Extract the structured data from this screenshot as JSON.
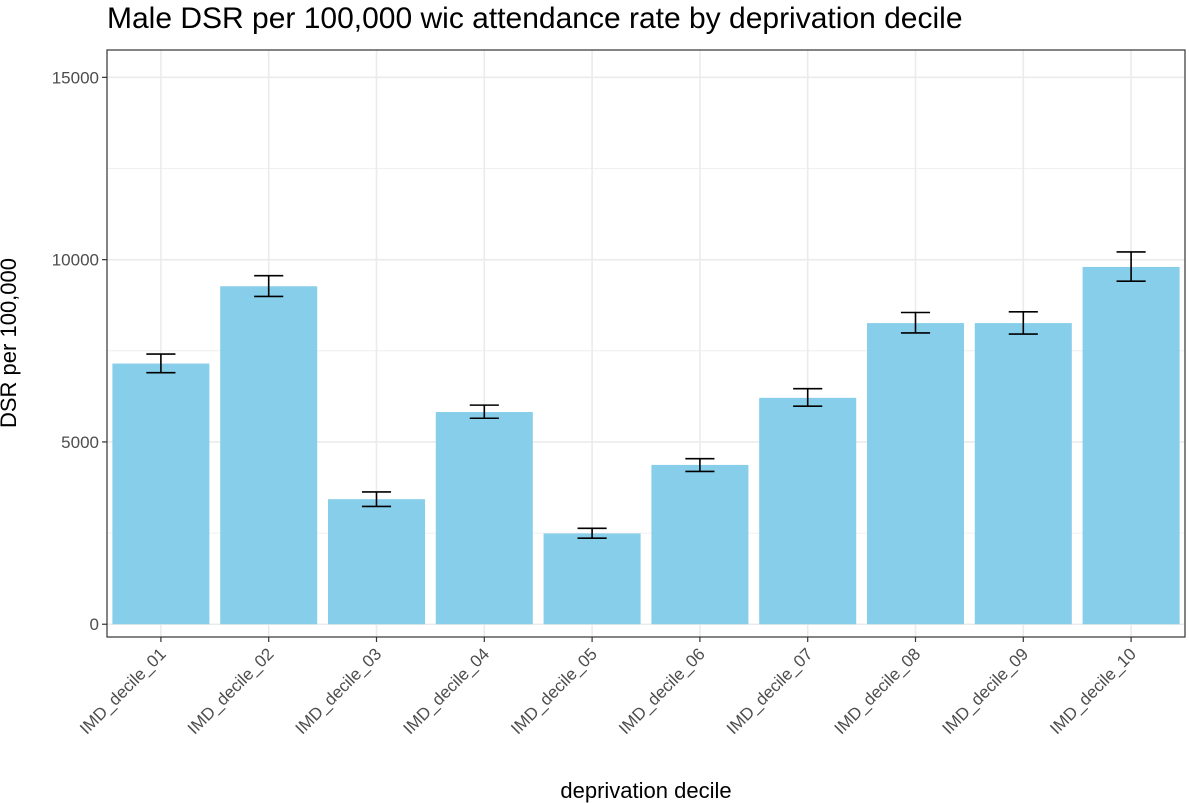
{
  "chart_data": {
    "type": "bar",
    "title": "Male DSR per 100,000 wic attendance rate by deprivation decile",
    "xlabel": "deprivation decile",
    "ylabel": "DSR per 100,000",
    "categories": [
      "IMD_decile_01",
      "IMD_decile_02",
      "IMD_decile_03",
      "IMD_decile_04",
      "IMD_decile_05",
      "IMD_decile_06",
      "IMD_decile_07",
      "IMD_decile_08",
      "IMD_decile_09",
      "IMD_decile_10"
    ],
    "values": [
      7150,
      9270,
      3430,
      5820,
      2490,
      4370,
      6210,
      8260,
      8260,
      9800
    ],
    "error_low": [
      6900,
      8990,
      3230,
      5650,
      2360,
      4190,
      5980,
      7990,
      7960,
      9410
    ],
    "error_high": [
      7410,
      9560,
      3630,
      6010,
      2630,
      4540,
      6460,
      8550,
      8570,
      10210
    ],
    "ylim": [
      -350,
      15750
    ],
    "yticks": [
      0,
      5000,
      10000,
      15000
    ],
    "ytick_labels": [
      "0",
      "5000",
      "10000",
      "15000"
    ],
    "grid": true,
    "bar_color": "#87CEEB",
    "errorbar_color": "#000000",
    "grid_color": "#ebebeb",
    "panel_border_color": "#333333"
  }
}
